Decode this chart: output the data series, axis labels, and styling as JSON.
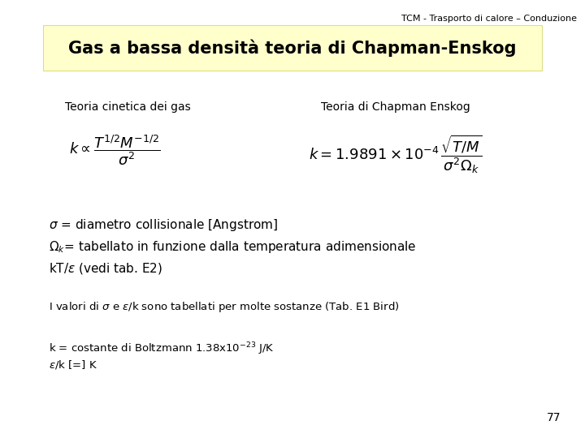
{
  "background_color": "#ffffff",
  "header_text": "TCM - Trasporto di calore – Conduzione",
  "header_fontsize": 8,
  "title_text": "Gas a bassa densità teoria di Chapman-Enskog",
  "title_fontsize": 15,
  "title_bg_color": "#ffffcc",
  "title_edge_color": "#dddd88",
  "label_left": "Teoria cinetica dei gas",
  "label_right": "Teoria di Chapman Enskog",
  "page_number": "77",
  "text_color": "#000000",
  "formula_fontsize": 13,
  "label_fontsize": 10,
  "body_fontsize": 11,
  "note_fontsize": 9.5
}
